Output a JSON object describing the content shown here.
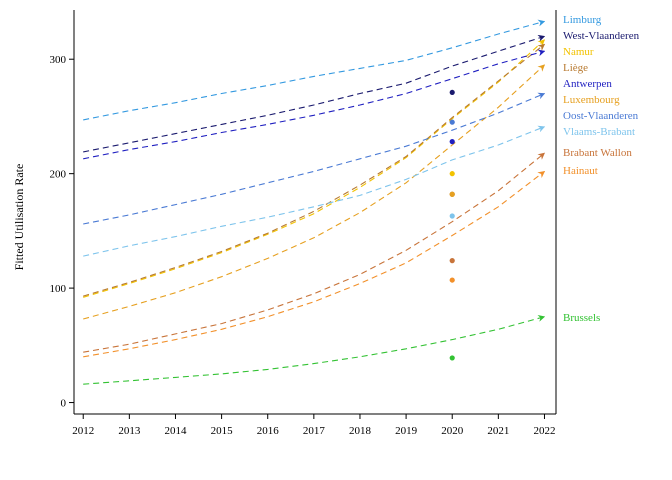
{
  "chart_data": {
    "type": "line",
    "title": "",
    "xlabel": "",
    "ylabel": "Fitted Utilisation Rate",
    "x": [
      2012,
      2013,
      2014,
      2015,
      2016,
      2017,
      2018,
      2019,
      2020,
      2021,
      2022
    ],
    "xlim": [
      2011.8,
      2022.25
    ],
    "ylim": [
      -10,
      343
    ],
    "yticks": [
      0,
      100,
      200,
      300
    ],
    "grid": false,
    "legend": "inline labels at right end of lines",
    "line_style": "dashed with arrowhead at 2022",
    "series": [
      {
        "name": "Limburg",
        "color": "#3399e0",
        "values": [
          247,
          255,
          262,
          270,
          277,
          285,
          292,
          299,
          310,
          322,
          333
        ],
        "observed_2020": null
      },
      {
        "name": "West-Vlaanderen",
        "color": "#1a1a6e",
        "values": [
          219,
          227,
          235,
          243,
          251,
          260,
          270,
          279,
          294,
          307,
          320
        ],
        "observed_2020": 271
      },
      {
        "name": "Namur",
        "color": "#f2c200",
        "values": [
          92,
          104,
          117,
          131,
          147,
          165,
          188,
          214,
          248,
          280,
          317
        ],
        "observed_2020": 200
      },
      {
        "name": "Liège",
        "color": "#b87a30",
        "values": [
          93,
          105,
          118,
          132,
          148,
          167,
          190,
          215,
          249,
          281,
          313
        ],
        "observed_2020": 182
      },
      {
        "name": "Antwerpen",
        "color": "#1f1fc0",
        "values": [
          213,
          221,
          228,
          236,
          243,
          251,
          260,
          270,
          283,
          296,
          307
        ],
        "observed_2020": 228
      },
      {
        "name": "Luxembourg",
        "color": "#e6a020",
        "values": [
          73,
          84,
          96,
          110,
          126,
          144,
          166,
          192,
          225,
          258,
          295
        ],
        "observed_2020": 182
      },
      {
        "name": "Oost-Vlaanderen",
        "color": "#4a7ad4",
        "values": [
          156,
          164,
          173,
          182,
          192,
          202,
          213,
          224,
          238,
          253,
          270
        ],
        "observed_2020": 245
      },
      {
        "name": "Vlaams-Brabant",
        "color": "#7ec4ec",
        "values": [
          128,
          137,
          145,
          154,
          162,
          171,
          181,
          195,
          212,
          225,
          241
        ],
        "observed_2020": 163
      },
      {
        "name": "Brabant Wallon",
        "color": "#c8743a",
        "values": [
          44,
          51,
          60,
          69,
          81,
          95,
          112,
          133,
          158,
          185,
          218
        ],
        "observed_2020": 124
      },
      {
        "name": "Hainaut",
        "color": "#f2902a",
        "values": [
          40,
          47,
          55,
          64,
          75,
          88,
          104,
          122,
          146,
          171,
          202
        ],
        "observed_2020": 107
      },
      {
        "name": "Brussels",
        "color": "#33c233",
        "values": [
          16,
          19,
          22,
          25,
          29,
          34,
          40,
          47,
          55,
          64,
          75
        ],
        "observed_2020": 39
      }
    ],
    "label_order": [
      "Limburg",
      "West-Vlaanderen",
      "Namur",
      "Liège",
      "Antwerpen",
      "Luxembourg",
      "Oost-Vlaanderen",
      "Vlaams-Brabant",
      "Brabant Wallon",
      "Hainaut",
      "Brussels"
    ]
  }
}
